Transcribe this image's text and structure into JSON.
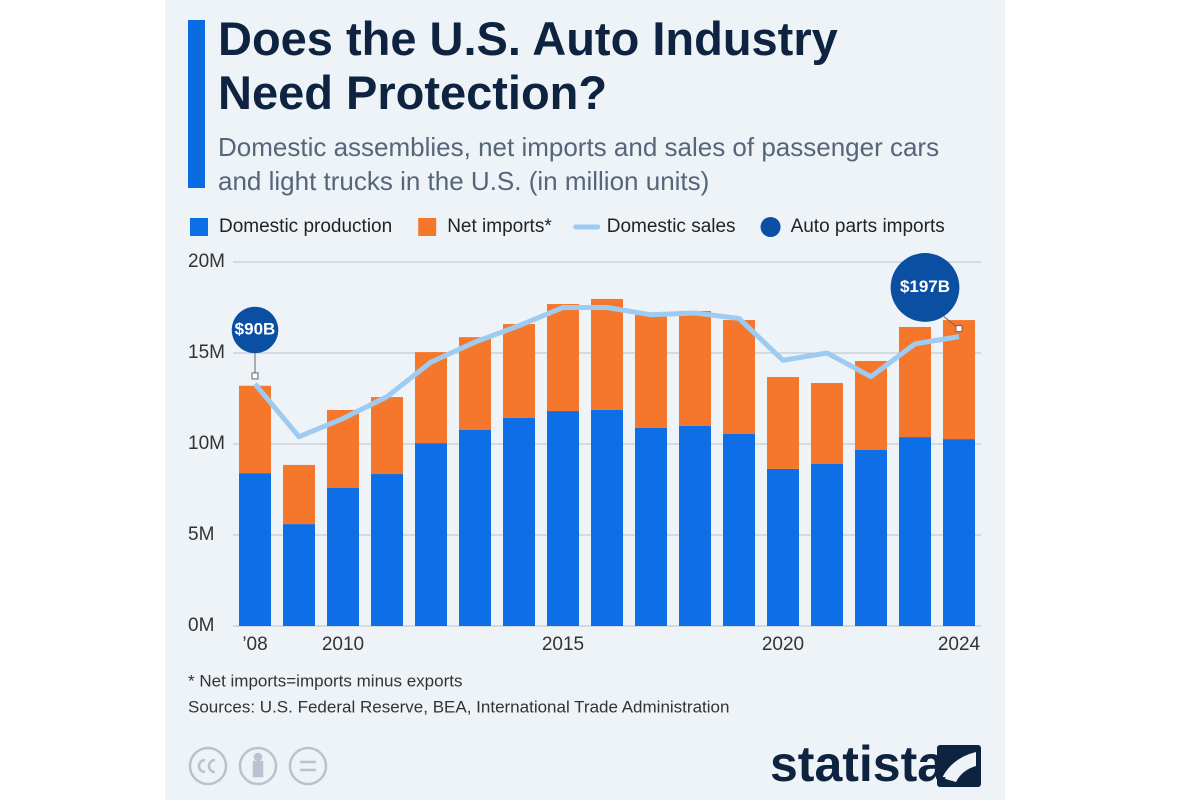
{
  "chart_data": {
    "type": "bar",
    "stacked": true,
    "title": "Does the U.S. Auto Industry Need Protection?",
    "subtitle": "Domestic assemblies, net imports and sales of passenger cars and light trucks in the U.S. (in million units)",
    "categories": [
      "’08",
      null,
      "2010",
      null,
      null,
      null,
      null,
      "2015",
      null,
      null,
      null,
      null,
      "2020",
      null,
      null,
      null,
      "2024"
    ],
    "series": [
      {
        "name": "Domestic production",
        "type": "bar",
        "color": "#0e6ee6",
        "values": [
          8.4,
          5.6,
          7.6,
          8.35,
          10.05,
          10.77,
          11.43,
          11.81,
          11.87,
          10.88,
          10.99,
          10.55,
          8.63,
          8.9,
          9.67,
          10.38,
          10.27
        ]
      },
      {
        "name": "Net imports*",
        "type": "bar",
        "color": "#f5772b",
        "values": [
          4.8,
          3.25,
          4.27,
          4.23,
          5.0,
          5.1,
          5.16,
          5.88,
          6.1,
          6.26,
          6.32,
          6.26,
          5.05,
          4.45,
          4.89,
          6.05,
          6.54
        ]
      },
      {
        "name": "Domestic sales",
        "type": "line",
        "color": "#9dcbf2",
        "values": [
          13.3,
          10.4,
          11.4,
          12.6,
          14.5,
          15.6,
          16.5,
          17.5,
          17.5,
          17.1,
          17.2,
          16.9,
          14.6,
          15.0,
          13.7,
          15.5,
          15.9
        ]
      },
      {
        "name": "Auto parts imports",
        "type": "bubble",
        "color": "#0b4fa3",
        "values": [
          90,
          null,
          null,
          null,
          null,
          null,
          null,
          null,
          null,
          null,
          null,
          null,
          null,
          null,
          null,
          null,
          197
        ],
        "value_labels": [
          "$90B",
          null,
          null,
          null,
          null,
          null,
          null,
          null,
          null,
          null,
          null,
          null,
          null,
          null,
          null,
          null,
          "$197B"
        ]
      }
    ],
    "ylim": [
      0,
      20
    ],
    "yticks": [
      {
        "value": 0,
        "label": "0M"
      },
      {
        "value": 5,
        "label": "5M"
      },
      {
        "value": 10,
        "label": "10M"
      },
      {
        "value": 15,
        "label": "15M"
      },
      {
        "value": 20,
        "label": "20M"
      }
    ],
    "grid": true,
    "footnote": "* Net imports=imports minus exports",
    "source": "Sources: U.S. Federal Reserve, BEA, International Trade Administration",
    "brand": "statista"
  }
}
